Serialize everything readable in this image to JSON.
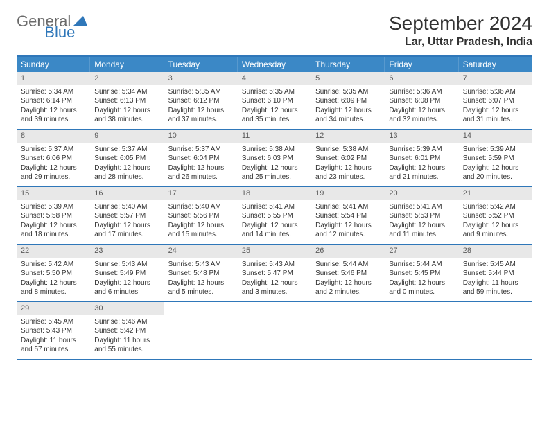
{
  "logo": {
    "word1": "General",
    "word2": "Blue"
  },
  "header": {
    "title": "September 2024",
    "location": "Lar, Uttar Pradesh, India"
  },
  "colors": {
    "brandBlue": "#2f77b9",
    "headerBar": "#3b88c6",
    "dayBar": "#e8e8e8",
    "grayText": "#6b6b6b"
  },
  "weekdays": [
    "Sunday",
    "Monday",
    "Tuesday",
    "Wednesday",
    "Thursday",
    "Friday",
    "Saturday"
  ],
  "weeks": [
    [
      {
        "n": "1",
        "sr": "Sunrise: 5:34 AM",
        "ss": "Sunset: 6:14 PM",
        "d1": "Daylight: 12 hours",
        "d2": "and 39 minutes."
      },
      {
        "n": "2",
        "sr": "Sunrise: 5:34 AM",
        "ss": "Sunset: 6:13 PM",
        "d1": "Daylight: 12 hours",
        "d2": "and 38 minutes."
      },
      {
        "n": "3",
        "sr": "Sunrise: 5:35 AM",
        "ss": "Sunset: 6:12 PM",
        "d1": "Daylight: 12 hours",
        "d2": "and 37 minutes."
      },
      {
        "n": "4",
        "sr": "Sunrise: 5:35 AM",
        "ss": "Sunset: 6:10 PM",
        "d1": "Daylight: 12 hours",
        "d2": "and 35 minutes."
      },
      {
        "n": "5",
        "sr": "Sunrise: 5:35 AM",
        "ss": "Sunset: 6:09 PM",
        "d1": "Daylight: 12 hours",
        "d2": "and 34 minutes."
      },
      {
        "n": "6",
        "sr": "Sunrise: 5:36 AM",
        "ss": "Sunset: 6:08 PM",
        "d1": "Daylight: 12 hours",
        "d2": "and 32 minutes."
      },
      {
        "n": "7",
        "sr": "Sunrise: 5:36 AM",
        "ss": "Sunset: 6:07 PM",
        "d1": "Daylight: 12 hours",
        "d2": "and 31 minutes."
      }
    ],
    [
      {
        "n": "8",
        "sr": "Sunrise: 5:37 AM",
        "ss": "Sunset: 6:06 PM",
        "d1": "Daylight: 12 hours",
        "d2": "and 29 minutes."
      },
      {
        "n": "9",
        "sr": "Sunrise: 5:37 AM",
        "ss": "Sunset: 6:05 PM",
        "d1": "Daylight: 12 hours",
        "d2": "and 28 minutes."
      },
      {
        "n": "10",
        "sr": "Sunrise: 5:37 AM",
        "ss": "Sunset: 6:04 PM",
        "d1": "Daylight: 12 hours",
        "d2": "and 26 minutes."
      },
      {
        "n": "11",
        "sr": "Sunrise: 5:38 AM",
        "ss": "Sunset: 6:03 PM",
        "d1": "Daylight: 12 hours",
        "d2": "and 25 minutes."
      },
      {
        "n": "12",
        "sr": "Sunrise: 5:38 AM",
        "ss": "Sunset: 6:02 PM",
        "d1": "Daylight: 12 hours",
        "d2": "and 23 minutes."
      },
      {
        "n": "13",
        "sr": "Sunrise: 5:39 AM",
        "ss": "Sunset: 6:01 PM",
        "d1": "Daylight: 12 hours",
        "d2": "and 21 minutes."
      },
      {
        "n": "14",
        "sr": "Sunrise: 5:39 AM",
        "ss": "Sunset: 5:59 PM",
        "d1": "Daylight: 12 hours",
        "d2": "and 20 minutes."
      }
    ],
    [
      {
        "n": "15",
        "sr": "Sunrise: 5:39 AM",
        "ss": "Sunset: 5:58 PM",
        "d1": "Daylight: 12 hours",
        "d2": "and 18 minutes."
      },
      {
        "n": "16",
        "sr": "Sunrise: 5:40 AM",
        "ss": "Sunset: 5:57 PM",
        "d1": "Daylight: 12 hours",
        "d2": "and 17 minutes."
      },
      {
        "n": "17",
        "sr": "Sunrise: 5:40 AM",
        "ss": "Sunset: 5:56 PM",
        "d1": "Daylight: 12 hours",
        "d2": "and 15 minutes."
      },
      {
        "n": "18",
        "sr": "Sunrise: 5:41 AM",
        "ss": "Sunset: 5:55 PM",
        "d1": "Daylight: 12 hours",
        "d2": "and 14 minutes."
      },
      {
        "n": "19",
        "sr": "Sunrise: 5:41 AM",
        "ss": "Sunset: 5:54 PM",
        "d1": "Daylight: 12 hours",
        "d2": "and 12 minutes."
      },
      {
        "n": "20",
        "sr": "Sunrise: 5:41 AM",
        "ss": "Sunset: 5:53 PM",
        "d1": "Daylight: 12 hours",
        "d2": "and 11 minutes."
      },
      {
        "n": "21",
        "sr": "Sunrise: 5:42 AM",
        "ss": "Sunset: 5:52 PM",
        "d1": "Daylight: 12 hours",
        "d2": "and 9 minutes."
      }
    ],
    [
      {
        "n": "22",
        "sr": "Sunrise: 5:42 AM",
        "ss": "Sunset: 5:50 PM",
        "d1": "Daylight: 12 hours",
        "d2": "and 8 minutes."
      },
      {
        "n": "23",
        "sr": "Sunrise: 5:43 AM",
        "ss": "Sunset: 5:49 PM",
        "d1": "Daylight: 12 hours",
        "d2": "and 6 minutes."
      },
      {
        "n": "24",
        "sr": "Sunrise: 5:43 AM",
        "ss": "Sunset: 5:48 PM",
        "d1": "Daylight: 12 hours",
        "d2": "and 5 minutes."
      },
      {
        "n": "25",
        "sr": "Sunrise: 5:43 AM",
        "ss": "Sunset: 5:47 PM",
        "d1": "Daylight: 12 hours",
        "d2": "and 3 minutes."
      },
      {
        "n": "26",
        "sr": "Sunrise: 5:44 AM",
        "ss": "Sunset: 5:46 PM",
        "d1": "Daylight: 12 hours",
        "d2": "and 2 minutes."
      },
      {
        "n": "27",
        "sr": "Sunrise: 5:44 AM",
        "ss": "Sunset: 5:45 PM",
        "d1": "Daylight: 12 hours",
        "d2": "and 0 minutes."
      },
      {
        "n": "28",
        "sr": "Sunrise: 5:45 AM",
        "ss": "Sunset: 5:44 PM",
        "d1": "Daylight: 11 hours",
        "d2": "and 59 minutes."
      }
    ],
    [
      {
        "n": "29",
        "sr": "Sunrise: 5:45 AM",
        "ss": "Sunset: 5:43 PM",
        "d1": "Daylight: 11 hours",
        "d2": "and 57 minutes."
      },
      {
        "n": "30",
        "sr": "Sunrise: 5:46 AM",
        "ss": "Sunset: 5:42 PM",
        "d1": "Daylight: 11 hours",
        "d2": "and 55 minutes."
      },
      {
        "empty": true
      },
      {
        "empty": true
      },
      {
        "empty": true
      },
      {
        "empty": true
      },
      {
        "empty": true
      }
    ]
  ]
}
